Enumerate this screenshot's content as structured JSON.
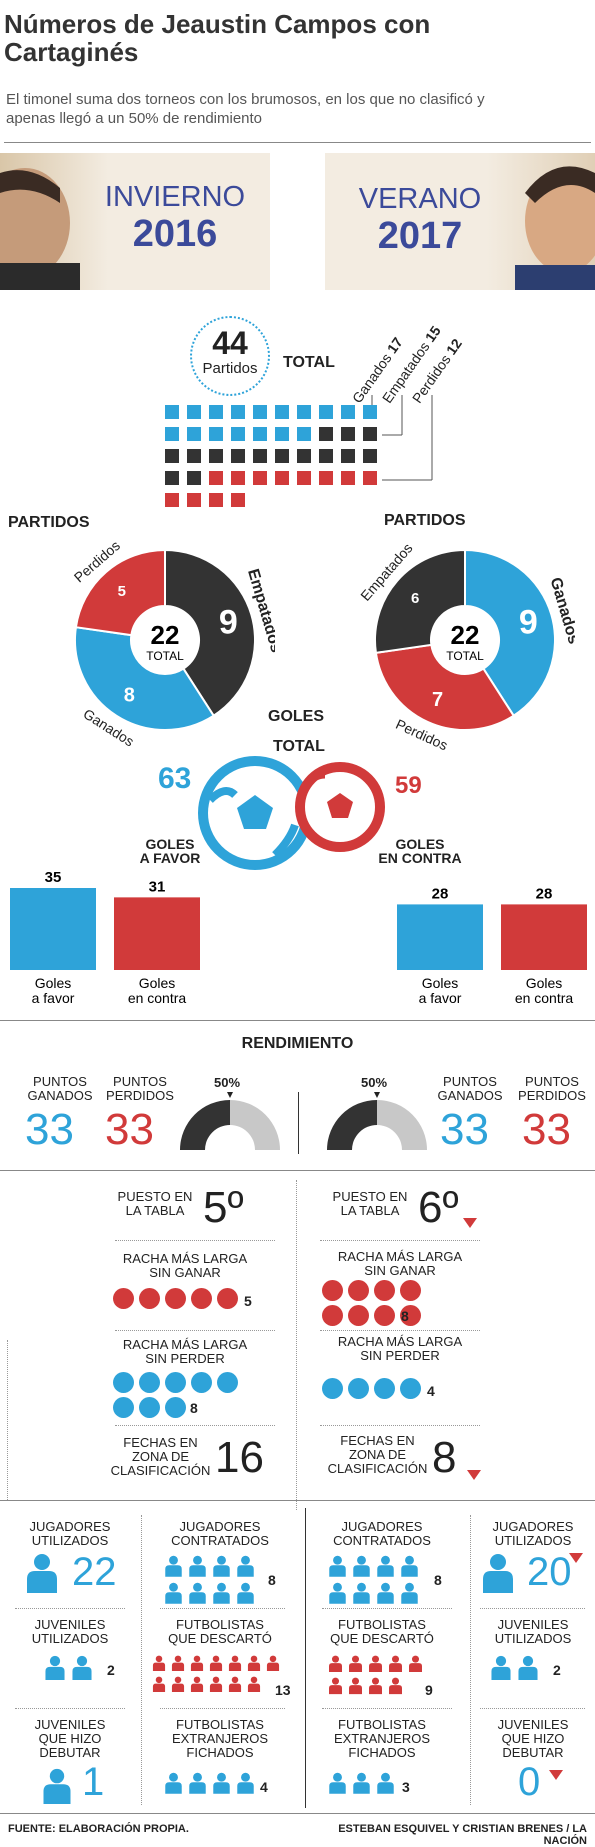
{
  "header": {
    "title_line1": "Números de Jeaustin Campos con",
    "title_line2": "Cartaginés",
    "subtitle_line1": "El timonel suma dos torneos con los brumosos, en los que no clasificó y",
    "subtitle_line2": "apenas llegó a un 50% de rendimiento"
  },
  "seasons": [
    {
      "name": "INVIERNO",
      "year": "2016"
    },
    {
      "name": "VERANO",
      "year": "2017"
    }
  ],
  "total": {
    "number": "44",
    "unit": "Partidos",
    "label": "TOTAL",
    "legend": [
      {
        "label": "Ganados",
        "value": "17"
      },
      {
        "label": "Empatados",
        "value": "15"
      },
      {
        "label": "Perdidos",
        "value": "12"
      }
    ],
    "squares": {
      "ganados": 17,
      "empatados": 15,
      "perdidos": 12
    }
  },
  "partidos": {
    "heading": "PARTIDOS",
    "left": {
      "total": "22",
      "total_label": "TOTAL",
      "slices": [
        {
          "label": "Empatados",
          "value": 9
        },
        {
          "label": "Ganados",
          "value": 8
        },
        {
          "label": "Perdidos",
          "value": 5
        }
      ]
    },
    "right": {
      "total": "22",
      "total_label": "TOTAL",
      "slices": [
        {
          "label": "Ganados",
          "value": 9
        },
        {
          "label": "Perdidos",
          "value": 7
        },
        {
          "label": "Empatados",
          "value": 6
        }
      ]
    }
  },
  "goles": {
    "heading": "GOLES",
    "total_label": "TOTAL",
    "favor": "63",
    "contra": "59",
    "favor_label_1": "GOLES",
    "favor_label_2": "A FAVOR",
    "contra_label_1": "GOLES",
    "contra_label_2": "EN CONTRA",
    "bars_left": [
      {
        "label1": "Goles",
        "label2": "a favor",
        "value": 35
      },
      {
        "label1": "Goles",
        "label2": "en contra",
        "value": 31
      }
    ],
    "bars_right": [
      {
        "label1": "Goles",
        "label2": "a favor",
        "value": 28
      },
      {
        "label1": "Goles",
        "label2": "en contra",
        "value": 28
      }
    ]
  },
  "rendimiento": {
    "heading": "RENDIMIENTO",
    "left": {
      "ganados_label_1": "PUNTOS",
      "ganados_label_2": "GANADOS",
      "ganados": "33",
      "perdidos_label_1": "PUNTOS",
      "perdidos_label_2": "PERDIDOS",
      "perdidos": "33",
      "pct": "50%",
      "pct_value": 0.5
    },
    "right": {
      "ganados_label_1": "PUNTOS",
      "ganados_label_2": "GANADOS",
      "ganados": "33",
      "perdidos_label_1": "PUNTOS",
      "perdidos_label_2": "PERDIDOS",
      "perdidos": "33",
      "pct": "50%",
      "pct_value": 0.5
    }
  },
  "stats": {
    "puesto_1": "PUESTO EN",
    "puesto_2": "LA TABLA",
    "left_puesto": "5º",
    "right_puesto": "6º",
    "sin_ganar_1": "RACHA MÁS LARGA",
    "sin_ganar_2": "SIN GANAR",
    "left_sin_ganar": "5",
    "right_sin_ganar": "8",
    "sin_perder_1": "RACHA MÁS LARGA",
    "sin_perder_2": "SIN PERDER",
    "left_sin_perder": "8",
    "right_sin_perder": "4",
    "fechas_1": "FECHAS EN",
    "fechas_2": "ZONA DE",
    "fechas_3": "CLASIFICACIÓN",
    "left_fechas": "16",
    "right_fechas": "8"
  },
  "jugadores": {
    "utilizados_1": "JUGADORES",
    "utilizados_2": "UTILIZADOS",
    "contratados_1": "JUGADORES",
    "contratados_2": "CONTRATADOS",
    "juveniles_1": "JUVENILES",
    "juveniles_2": "UTILIZADOS",
    "descarto_1": "FUTBOLISTAS",
    "descarto_2": "QUE DESCARTÓ",
    "debutar_1": "JUVENILES",
    "debutar_2": "QUE HIZO",
    "debutar_3": "DEBUTAR",
    "extranjeros_1": "FUTBOLISTAS",
    "extranjeros_2": "EXTRANJEROS",
    "extranjeros_3": "FICHADOS",
    "left": {
      "utilizados": "22",
      "contratados": "8",
      "juveniles": "2",
      "descarto": "13",
      "debutar": "1",
      "extranjeros": "4"
    },
    "right": {
      "utilizados": "20",
      "contratados": "8",
      "juveniles": "2",
      "descarto": "9",
      "debutar": "0",
      "extranjeros": "3"
    }
  },
  "footer": {
    "source": "FUENTE:  ELABORACIÓN PROPIA.",
    "credits": "ESTEBAN ESQUIVEL Y CRISTIAN BRENES  / LA NACIÓN"
  },
  "colors": {
    "blue": "#2ea3d9",
    "red": "#d13a3a",
    "dark": "#333333",
    "gray": "#c8c8c8"
  }
}
